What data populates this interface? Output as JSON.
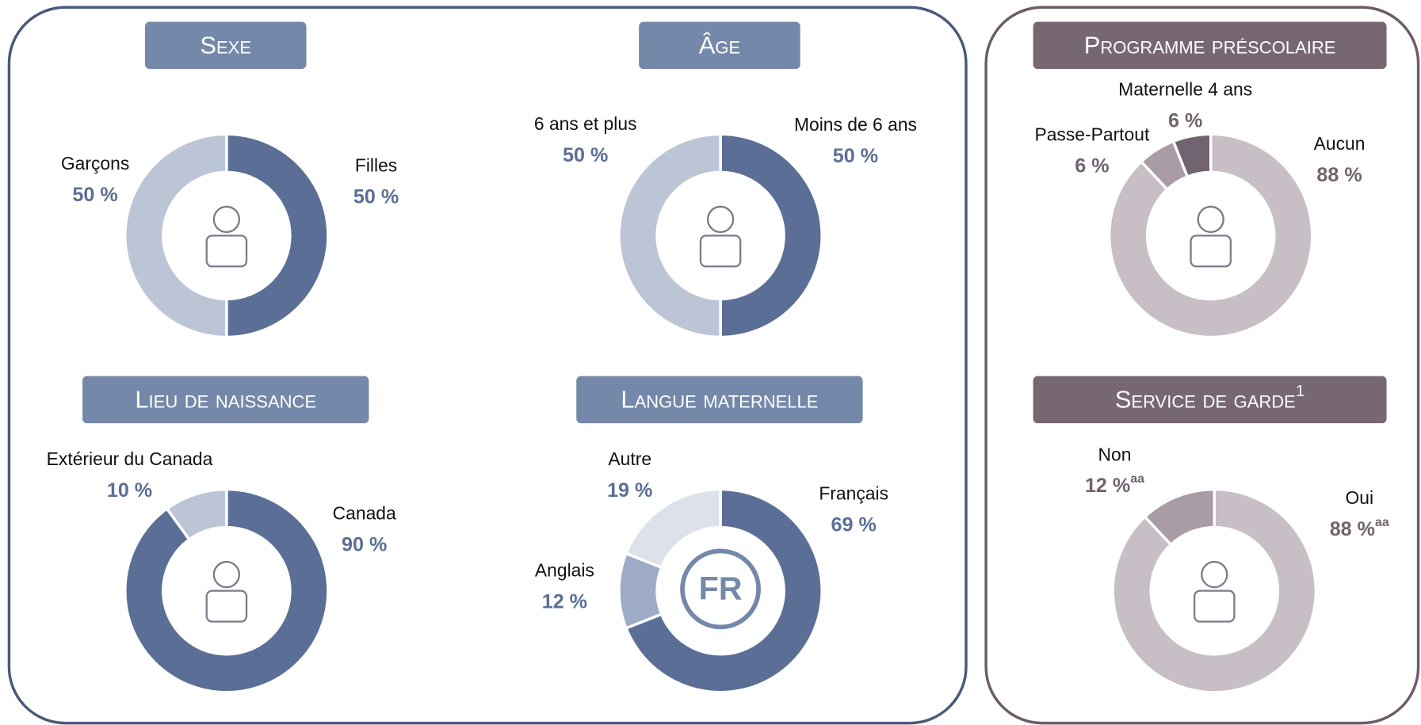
{
  "chart_data": [
    {
      "type": "pie",
      "title": "Sexe",
      "categories": [
        "Filles",
        "Garçons"
      ],
      "values": [
        50,
        50
      ],
      "value_labels": [
        "50 %",
        "50 %"
      ],
      "colors": [
        "#5b6f96",
        "#bcc5d6"
      ]
    },
    {
      "type": "pie",
      "title": "Âge",
      "categories": [
        "Moins de 6 ans",
        "6 ans et plus"
      ],
      "values": [
        50,
        50
      ],
      "value_labels": [
        "50 %",
        "50 %"
      ],
      "colors": [
        "#5b6f96",
        "#bcc5d6"
      ]
    },
    {
      "type": "pie",
      "title": "Lieu de naissance",
      "categories": [
        "Canada",
        "Extérieur du Canada"
      ],
      "values": [
        90,
        10
      ],
      "value_labels": [
        "90 %",
        "10 %"
      ],
      "colors": [
        "#5b6f96",
        "#bcc5d6"
      ]
    },
    {
      "type": "pie",
      "title": "Langue maternelle",
      "icon_text": "FR",
      "categories": [
        "Français",
        "Anglais",
        "Autre"
      ],
      "values": [
        69,
        12,
        19
      ],
      "value_labels": [
        "69 %",
        "12 %",
        "19 %"
      ],
      "colors": [
        "#5b6f96",
        "#9eabc6",
        "#dde2ea"
      ]
    },
    {
      "type": "pie",
      "title": "Programme préscolaire",
      "categories": [
        "Aucun",
        "Passe-Partout",
        "Maternelle 4 ans"
      ],
      "values": [
        88,
        6,
        6
      ],
      "value_labels": [
        "88 %",
        "6 %",
        "6 %"
      ],
      "colors": [
        "#c8bfc6",
        "#a99ca6",
        "#726370"
      ]
    },
    {
      "type": "pie",
      "title": "Service de garde",
      "title_note": "1",
      "categories": [
        "Oui",
        "Non"
      ],
      "values": [
        88,
        12
      ],
      "value_labels": [
        "88 %",
        "12 %"
      ],
      "label_notes": [
        "aa",
        "aa"
      ],
      "colors": [
        "#c8bfc6",
        "#a99ca6"
      ]
    }
  ]
}
